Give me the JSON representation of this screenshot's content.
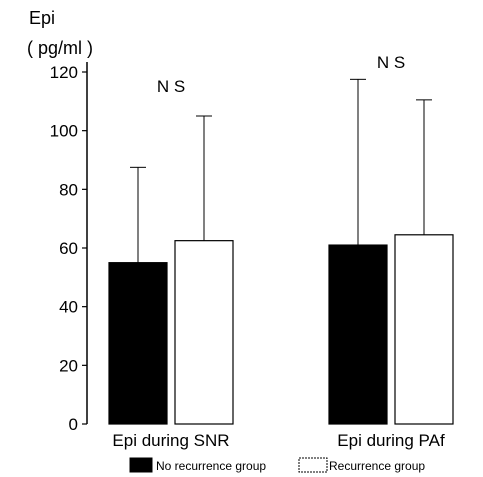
{
  "chart_data": {
    "type": "bar",
    "ylabel": "Epi",
    "yunit": "( pg/ml )",
    "ylim": [
      0,
      120
    ],
    "yticks": [
      0,
      20,
      40,
      60,
      80,
      100,
      120
    ],
    "categories": [
      "Epi during SNR",
      "Epi during PAf"
    ],
    "series": [
      {
        "name": "No recurrence group",
        "color": "#000000",
        "values": [
          55,
          61
        ],
        "error_upper": [
          87.5,
          117.5
        ]
      },
      {
        "name": "Recurrence group",
        "color": "#ffffff",
        "values": [
          62.5,
          64.5
        ],
        "error_upper": [
          105,
          110.5
        ]
      }
    ],
    "annotations": [
      "N S",
      "N S"
    ],
    "legend": "bottom"
  }
}
